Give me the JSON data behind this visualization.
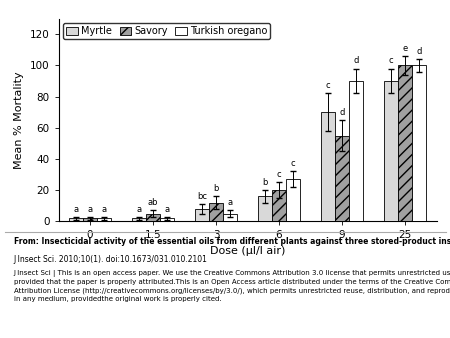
{
  "doses": [
    0,
    1.5,
    3,
    6,
    9,
    25
  ],
  "series": {
    "Myrtle": {
      "values": [
        2,
        2,
        8,
        16,
        70,
        90
      ],
      "errors": [
        1,
        1,
        3,
        4,
        12,
        8
      ],
      "color": "#d9d9d9",
      "hatch": "",
      "letters": [
        "a",
        "a",
        "bc",
        "b",
        "c",
        "c"
      ]
    },
    "Savory": {
      "values": [
        2,
        5,
        12,
        20,
        55,
        100
      ],
      "errors": [
        1,
        2,
        4,
        5,
        10,
        6
      ],
      "color": "#a0a0a0",
      "hatch": "///",
      "letters": [
        "a",
        "ab",
        "b",
        "c",
        "d",
        "e"
      ]
    },
    "Turkish oregano": {
      "values": [
        2,
        2,
        5,
        27,
        90,
        100
      ],
      "errors": [
        1,
        1,
        2,
        5,
        8,
        4
      ],
      "color": "#ffffff",
      "hatch": "",
      "letters": [
        "a",
        "a",
        "a",
        "c",
        "d",
        "d"
      ]
    }
  },
  "xlabel": "Dose (μl/l air)",
  "ylabel": "Mean % Mortality",
  "ylim": [
    0,
    130
  ],
  "yticks": [
    0,
    20,
    40,
    60,
    80,
    100,
    120
  ],
  "bar_width": 0.22,
  "legend_labels": [
    "Myrtle",
    "Savory",
    "Turkish oregano"
  ],
  "caption_bold": "From: Insecticidal activity of the essential oils from different plants against three stored-product insects",
  "caption_ref": "J Insect Sci. 2010;10(1). doi:10.1673/031.010.2101",
  "caption_body": "J Insect Sci | This is an open access paper. We use the Creative Commons Attribution 3.0 license that permits unrestricted use,\nprovided that the paper is properly attributed.This is an Open Access article distributed under the terms of the Creative Commons\nAttribution License (http://creativecommons.org/licenses/by/3.0/), which permits unrestricted reuse, distribution, and reproduction\nin any medium, providedthe original work is properly cited."
}
